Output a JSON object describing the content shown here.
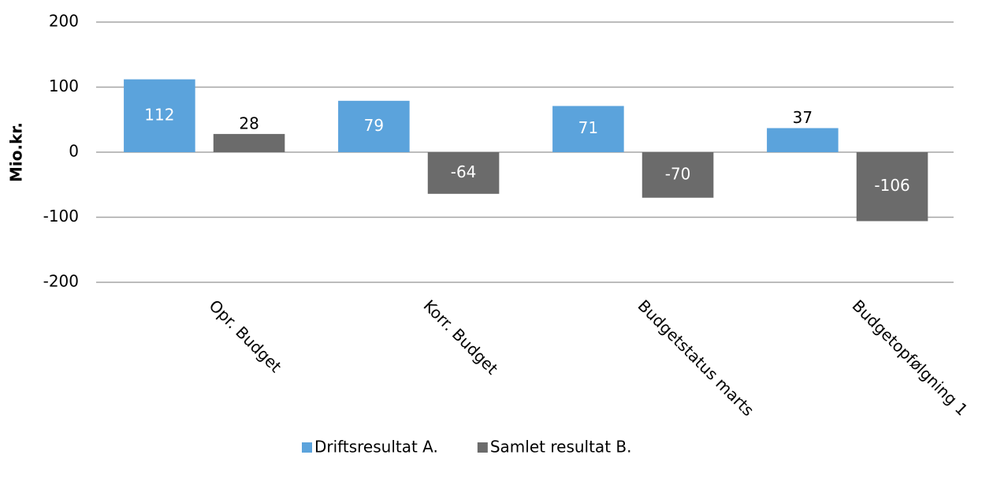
{
  "chart_data": {
    "type": "bar",
    "y_label": "Mio.kr.",
    "categories": [
      "Opr. Budget",
      "Korr. Budget",
      "Budgetstatus marts",
      "Budgetopfølgning 1"
    ],
    "series": [
      {
        "name": "Driftsresultat A.",
        "color": "#5ba3dc",
        "values": [
          112,
          79,
          71,
          37
        ]
      },
      {
        "name": "Samlet resultat B.",
        "color": "#6b6b6b",
        "values": [
          28,
          -64,
          -70,
          -106
        ]
      }
    ],
    "ylim": [
      -200,
      200
    ],
    "yticks": [
      -200,
      -100,
      0,
      100,
      200
    ],
    "grid": true,
    "legend": "bottom"
  }
}
